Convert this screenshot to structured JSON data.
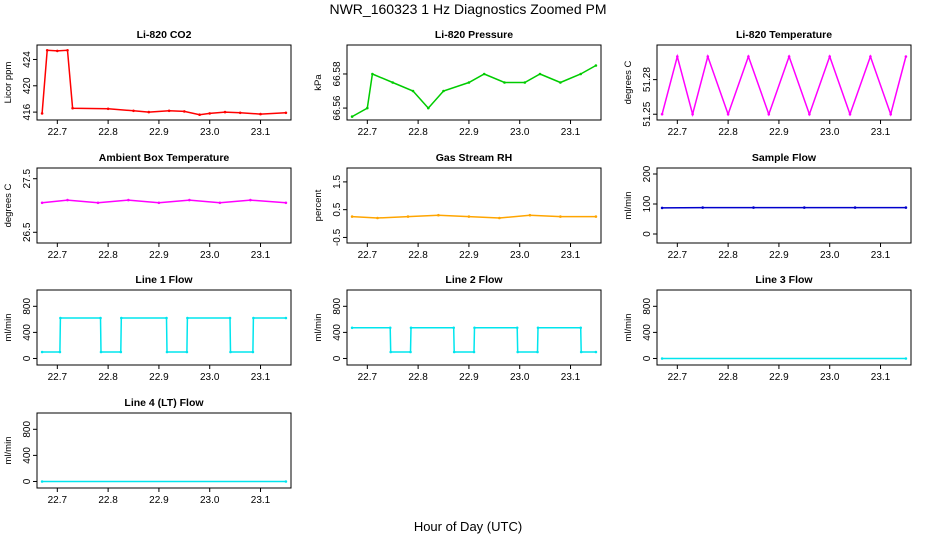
{
  "figure": {
    "title": "NWR_160323  1 Hz Diagnostics Zoomed PM",
    "xlabel": "Hour of Day (UTC)"
  },
  "chart_data": [
    {
      "type": "line",
      "title": "Li-820 CO2",
      "xlabel": "",
      "ylabel": "Licor ppm",
      "color": "#ff0000",
      "xlim": [
        22.66,
        23.16
      ],
      "ylim": [
        414.8,
        426.2
      ],
      "xticks": [
        "22.7",
        "22.8",
        "22.9",
        "23.0",
        "23.1"
      ],
      "yticks": [
        "416",
        "420",
        "424"
      ],
      "series": [
        {
          "x": [
            22.67,
            22.68,
            22.7,
            22.72,
            22.73,
            22.8,
            22.85,
            22.88,
            22.92,
            22.95,
            22.98,
            23.0,
            23.03,
            23.06,
            23.1,
            23.15
          ],
          "y": [
            415.8,
            425.4,
            425.3,
            425.4,
            416.6,
            416.5,
            416.2,
            416.0,
            416.2,
            416.1,
            415.6,
            415.8,
            416.0,
            415.9,
            415.7,
            415.9
          ]
        }
      ]
    },
    {
      "type": "line",
      "title": "Li-820 Pressure",
      "xlabel": "",
      "ylabel": "kPa",
      "color": "#00cc00",
      "xlim": [
        22.66,
        23.16
      ],
      "ylim": [
        66.553,
        66.597
      ],
      "xticks": [
        "22.7",
        "22.8",
        "22.9",
        "23.0",
        "23.1"
      ],
      "yticks": [
        "66.56",
        "66.58"
      ],
      "series": [
        {
          "x": [
            22.67,
            22.7,
            22.71,
            22.75,
            22.79,
            22.82,
            22.85,
            22.9,
            22.93,
            22.97,
            23.01,
            23.04,
            23.08,
            23.12,
            23.15
          ],
          "y": [
            66.555,
            66.56,
            66.58,
            66.575,
            66.57,
            66.56,
            66.57,
            66.575,
            66.58,
            66.575,
            66.575,
            66.58,
            66.575,
            66.58,
            66.585
          ]
        }
      ]
    },
    {
      "type": "line",
      "title": "Li-820 Temperature",
      "xlabel": "",
      "ylabel": "degrees C",
      "color": "#ff00ff",
      "xlim": [
        22.66,
        23.16
      ],
      "ylim": [
        51.245,
        51.31
      ],
      "xticks": [
        "22.7",
        "22.8",
        "22.9",
        "23.0",
        "23.1"
      ],
      "yticks": [
        "51.25",
        "51.28"
      ],
      "series": [
        {
          "x": [
            22.67,
            22.7,
            22.73,
            22.76,
            22.8,
            22.84,
            22.88,
            22.92,
            22.96,
            23.0,
            23.04,
            23.08,
            23.12,
            23.15
          ],
          "y": [
            51.25,
            51.3,
            51.25,
            51.3,
            51.25,
            51.3,
            51.25,
            51.3,
            51.25,
            51.3,
            51.25,
            51.3,
            51.25,
            51.3
          ]
        }
      ]
    },
    {
      "type": "line",
      "title": "Ambient Box Temperature",
      "xlabel": "",
      "ylabel": "degrees C",
      "color": "#ff00ff",
      "xlim": [
        22.66,
        23.16
      ],
      "ylim": [
        26.3,
        27.7
      ],
      "xticks": [
        "22.7",
        "22.8",
        "22.9",
        "23.0",
        "23.1"
      ],
      "yticks": [
        "26.5",
        "27.5"
      ],
      "series": [
        {
          "x": [
            22.67,
            22.72,
            22.78,
            22.84,
            22.9,
            22.96,
            23.02,
            23.08,
            23.15
          ],
          "y": [
            27.05,
            27.1,
            27.05,
            27.1,
            27.05,
            27.1,
            27.05,
            27.1,
            27.05
          ]
        }
      ]
    },
    {
      "type": "line",
      "title": "Gas Stream RH",
      "xlabel": "",
      "ylabel": "percent",
      "color": "#ffa500",
      "xlim": [
        22.66,
        23.16
      ],
      "ylim": [
        -0.7,
        2.0
      ],
      "xticks": [
        "22.7",
        "22.8",
        "22.9",
        "23.0",
        "23.1"
      ],
      "yticks": [
        "-0.5",
        "0.5",
        "1.5"
      ],
      "series": [
        {
          "x": [
            22.67,
            22.72,
            22.78,
            22.84,
            22.9,
            22.96,
            23.02,
            23.08,
            23.15
          ],
          "y": [
            0.25,
            0.2,
            0.25,
            0.3,
            0.25,
            0.2,
            0.3,
            0.25,
            0.25
          ]
        }
      ]
    },
    {
      "type": "line",
      "title": "Sample Flow",
      "xlabel": "",
      "ylabel": "ml/min",
      "color": "#0000cc",
      "xlim": [
        22.66,
        23.16
      ],
      "ylim": [
        -30,
        220
      ],
      "xticks": [
        "22.7",
        "22.8",
        "22.9",
        "23.0",
        "23.1"
      ],
      "yticks": [
        "0",
        "100",
        "200"
      ],
      "series": [
        {
          "x": [
            22.67,
            22.75,
            22.85,
            22.95,
            23.05,
            23.15
          ],
          "y": [
            87,
            88,
            88,
            88,
            88,
            88
          ]
        }
      ]
    },
    {
      "type": "line",
      "title": "Line 1 Flow",
      "xlabel": "",
      "ylabel": "ml/min",
      "color": "#00e5ee",
      "xlim": [
        22.66,
        23.16
      ],
      "ylim": [
        -100,
        1050
      ],
      "xticks": [
        "22.7",
        "22.8",
        "22.9",
        "23.0",
        "23.1"
      ],
      "yticks": [
        "0",
        "400",
        "800"
      ],
      "series": [
        {
          "x": [
            22.67,
            22.705,
            22.706,
            22.785,
            22.786,
            22.825,
            22.826,
            22.915,
            22.916,
            22.955,
            22.956,
            23.04,
            23.041,
            23.085,
            23.086,
            23.15
          ],
          "y": [
            100,
            100,
            620,
            620,
            100,
            100,
            620,
            620,
            100,
            100,
            620,
            620,
            100,
            100,
            620,
            620
          ]
        }
      ]
    },
    {
      "type": "line",
      "title": "Line 2 Flow",
      "xlabel": "",
      "ylabel": "ml/min",
      "color": "#00e5ee",
      "xlim": [
        22.66,
        23.16
      ],
      "ylim": [
        -100,
        1050
      ],
      "xticks": [
        "22.7",
        "22.8",
        "22.9",
        "23.0",
        "23.1"
      ],
      "yticks": [
        "0",
        "400",
        "800"
      ],
      "series": [
        {
          "x": [
            22.67,
            22.745,
            22.746,
            22.785,
            22.786,
            22.87,
            22.871,
            22.91,
            22.911,
            22.995,
            22.996,
            23.035,
            23.036,
            23.12,
            23.121,
            23.15
          ],
          "y": [
            470,
            470,
            100,
            100,
            470,
            470,
            100,
            100,
            470,
            470,
            100,
            100,
            470,
            470,
            100,
            100
          ]
        }
      ]
    },
    {
      "type": "line",
      "title": "Line 3 Flow",
      "xlabel": "",
      "ylabel": "ml/min",
      "color": "#00e5ee",
      "xlim": [
        22.66,
        23.16
      ],
      "ylim": [
        -100,
        1050
      ],
      "xticks": [
        "22.7",
        "22.8",
        "22.9",
        "23.0",
        "23.1"
      ],
      "yticks": [
        "0",
        "400",
        "800"
      ],
      "series": [
        {
          "x": [
            22.67,
            23.15
          ],
          "y": [
            0,
            0
          ]
        }
      ]
    },
    {
      "type": "line",
      "title": "Line 4 (LT) Flow",
      "xlabel": "",
      "ylabel": "ml/min",
      "color": "#00e5ee",
      "xlim": [
        22.66,
        23.16
      ],
      "ylim": [
        -100,
        1050
      ],
      "xticks": [
        "22.7",
        "22.8",
        "22.9",
        "23.0",
        "23.1"
      ],
      "yticks": [
        "0",
        "400",
        "800"
      ],
      "series": [
        {
          "x": [
            22.67,
            23.15
          ],
          "y": [
            0,
            0
          ]
        }
      ]
    }
  ]
}
